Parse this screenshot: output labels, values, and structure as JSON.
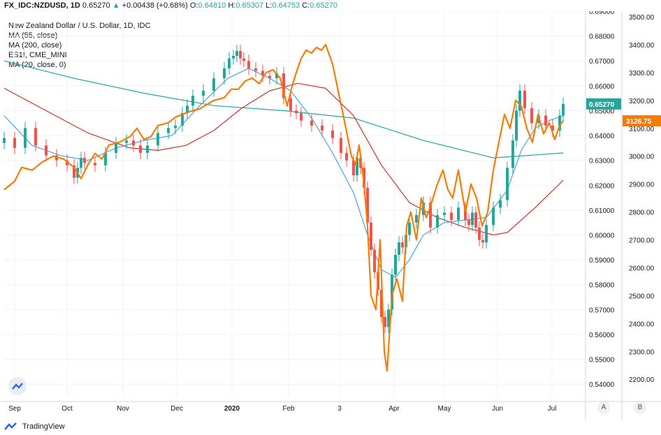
{
  "header": {
    "symbol": "FX_IDC:NZDUSD, 1D",
    "last": "0.65270",
    "change": "+0.00438 (+0.68%)",
    "open_label": "O:",
    "open": "0.64810",
    "high_label": "H:",
    "high": "0.65307",
    "low_label": "L:",
    "low": "0.64753",
    "close_label": "C:",
    "close": "0.65270"
  },
  "legend": {
    "title": "New Zealand Dollar / U.S. Dollar, 1D, IDC",
    "lines": [
      "MA (55, close)",
      "MA (200, close)",
      "ES1!, CME_MINI",
      "MA (20, close, 0)"
    ]
  },
  "footer": {
    "brand": "TradingView"
  },
  "buttons": {
    "a": "A",
    "b": "B"
  },
  "colors": {
    "up": "#26a69a",
    "down": "#ef5350",
    "ma55": "#c0392b",
    "ma200": "#26a69a",
    "ma20": "#4aa3df",
    "es": "#f57c00"
  },
  "chart_data": {
    "type": "line",
    "title": "New Zealand Dollar / U.S. Dollar, 1D, IDC",
    "x_ticks": [
      "Sep",
      "Oct",
      "Nov",
      "Dec",
      "2020",
      "Feb",
      "3",
      "Apr",
      "May",
      "Jun",
      "Jul"
    ],
    "left_axis": {
      "name": "NZDUSD",
      "ylim": [
        0.535,
        0.69
      ],
      "ticks": [
        "0.69000",
        "0.68000",
        "0.67000",
        "0.66000",
        "0.65000",
        "0.64000",
        "0.63000",
        "0.62000",
        "0.61000",
        "0.60000",
        "0.59000",
        "0.58000",
        "0.57000",
        "0.56000",
        "0.55000",
        "0.54000"
      ],
      "last_label": "0.65270"
    },
    "right_axis": {
      "name": "ES1!",
      "ylim": [
        2138,
        3520
      ],
      "ticks": [
        "3500.00",
        "3400.00",
        "3300.00",
        "3200.00",
        "3100.00",
        "3000.00",
        "2900.00",
        "2800.00",
        "2700.00",
        "2600.00",
        "2500.00",
        "2400.00",
        "2300.00",
        "2200.00"
      ],
      "last_label": "3126.75"
    },
    "series": [
      {
        "name": "NZDUSD",
        "style": "candles",
        "x": [
          0,
          15,
          30,
          45,
          60,
          75,
          90,
          100,
          105,
          110,
          115,
          130,
          145,
          160,
          175,
          185,
          195,
          205,
          220,
          235,
          245,
          255,
          262,
          270,
          285,
          300,
          315,
          322,
          328,
          333,
          338,
          343,
          350,
          360,
          370,
          380,
          390,
          400,
          410,
          418,
          425,
          440,
          455,
          470,
          482,
          490,
          500,
          505,
          510,
          515,
          520,
          525,
          530,
          535,
          540,
          545,
          550,
          555,
          560,
          565,
          570,
          575,
          580,
          590,
          600,
          610,
          620,
          630,
          640,
          650,
          660,
          665,
          670,
          675,
          680,
          685,
          690,
          700,
          710,
          720,
          728,
          733,
          738,
          745,
          755,
          765,
          775,
          785,
          795,
          800
        ],
        "close": [
          0.639,
          0.635,
          0.643,
          0.636,
          0.632,
          0.63,
          0.628,
          0.623,
          0.627,
          0.631,
          0.629,
          0.628,
          0.633,
          0.637,
          0.638,
          0.636,
          0.633,
          0.636,
          0.641,
          0.643,
          0.644,
          0.649,
          0.652,
          0.656,
          0.658,
          0.663,
          0.667,
          0.671,
          0.672,
          0.674,
          0.671,
          0.67,
          0.667,
          0.666,
          0.664,
          0.663,
          0.665,
          0.655,
          0.65,
          0.649,
          0.646,
          0.644,
          0.642,
          0.639,
          0.633,
          0.63,
          0.624,
          0.631,
          0.627,
          0.619,
          0.605,
          0.594,
          0.585,
          0.578,
          0.567,
          0.563,
          0.57,
          0.584,
          0.592,
          0.597,
          0.595,
          0.6,
          0.605,
          0.608,
          0.613,
          0.603,
          0.608,
          0.609,
          0.606,
          0.611,
          0.606,
          0.604,
          0.609,
          0.603,
          0.598,
          0.597,
          0.604,
          0.611,
          0.614,
          0.627,
          0.638,
          0.65,
          0.658,
          0.651,
          0.645,
          0.648,
          0.644,
          0.642,
          0.648,
          0.6527
        ]
      },
      {
        "name": "MA (20, close, 0)",
        "style": "line",
        "x": [
          0,
          40,
          80,
          120,
          160,
          200,
          240,
          280,
          320,
          350,
          380,
          410,
          440,
          470,
          500,
          520,
          540,
          560,
          580,
          600,
          630,
          660,
          690,
          720,
          740,
          760,
          780,
          800
        ],
        "y": [
          0.648,
          0.636,
          0.632,
          0.63,
          0.635,
          0.638,
          0.64,
          0.652,
          0.663,
          0.667,
          0.663,
          0.658,
          0.647,
          0.633,
          0.617,
          0.6,
          0.586,
          0.583,
          0.59,
          0.6,
          0.605,
          0.606,
          0.607,
          0.618,
          0.634,
          0.643,
          0.646,
          0.648
        ]
      },
      {
        "name": "MA (55, close)",
        "style": "line",
        "x": [
          0,
          60,
          120,
          180,
          220,
          260,
          300,
          340,
          380,
          420,
          460,
          500,
          540,
          580,
          620,
          660,
          700,
          720,
          760,
          800
        ],
        "y": [
          0.659,
          0.65,
          0.641,
          0.635,
          0.634,
          0.636,
          0.642,
          0.651,
          0.658,
          0.661,
          0.659,
          0.648,
          0.628,
          0.613,
          0.607,
          0.603,
          0.6,
          0.601,
          0.611,
          0.622
        ]
      },
      {
        "name": "MA (200, close)",
        "style": "line",
        "x": [
          0,
          100,
          200,
          300,
          400,
          500,
          600,
          700,
          750,
          800
        ],
        "y": [
          0.67,
          0.663,
          0.657,
          0.652,
          0.65,
          0.647,
          0.638,
          0.631,
          0.632,
          0.633
        ]
      },
      {
        "name": "ES1!, CME_MINI",
        "style": "line",
        "axis": "right",
        "x": [
          0,
          15,
          25,
          40,
          55,
          70,
          85,
          100,
          110,
          120,
          130,
          140,
          150,
          165,
          180,
          190,
          200,
          210,
          220,
          235,
          245,
          255,
          265,
          280,
          300,
          315,
          325,
          335,
          345,
          355,
          365,
          375,
          385,
          395,
          405,
          412,
          418,
          425,
          432,
          440,
          447,
          454,
          460,
          470,
          485,
          497,
          503,
          508,
          515,
          520,
          525,
          532,
          538,
          544,
          548,
          555,
          562,
          570,
          576,
          582,
          590,
          597,
          604,
          610,
          620,
          628,
          635,
          642,
          650,
          660,
          668,
          676,
          684,
          692,
          700,
          708,
          716,
          724,
          732,
          740,
          748,
          756,
          764,
          772,
          780,
          788,
          795,
          800
        ],
        "y": [
          2880,
          2910,
          2960,
          2950,
          2980,
          3000,
          2990,
          2960,
          2920,
          2970,
          3010,
          2990,
          3040,
          3050,
          3070,
          3100,
          3060,
          3070,
          3110,
          3120,
          3140,
          3150,
          3160,
          3170,
          3200,
          3210,
          3240,
          3240,
          3270,
          3280,
          3260,
          3300,
          3310,
          3280,
          3180,
          3250,
          3300,
          3350,
          3380,
          3370,
          3390,
          3380,
          3400,
          3330,
          3150,
          3000,
          2970,
          3040,
          2900,
          2750,
          2500,
          2450,
          2700,
          2300,
          2230,
          2500,
          2560,
          2480,
          2750,
          2800,
          2700,
          2850,
          2780,
          2820,
          2900,
          2950,
          2880,
          2850,
          2950,
          2800,
          2900,
          2850,
          2750,
          2800,
          2950,
          3050,
          3150,
          3100,
          3200,
          3180,
          3100,
          3050,
          3150,
          3080,
          3120,
          3060,
          3110,
          3127
        ]
      }
    ]
  }
}
